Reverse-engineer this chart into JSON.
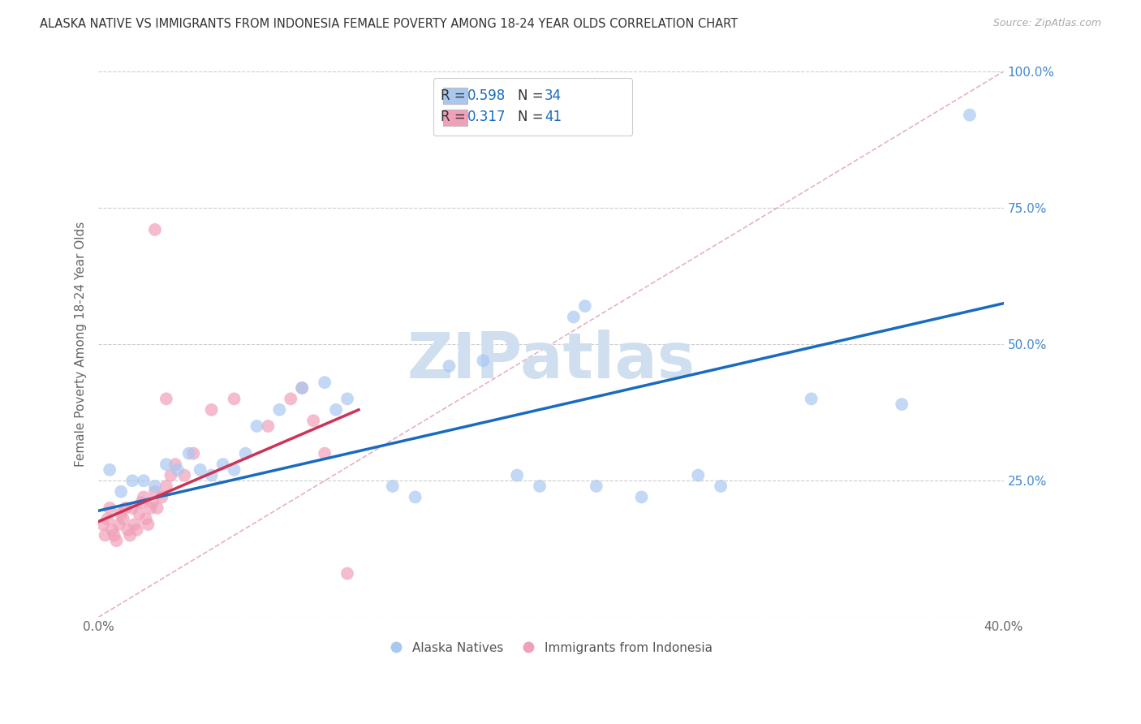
{
  "title": "ALASKA NATIVE VS IMMIGRANTS FROM INDONESIA FEMALE POVERTY AMONG 18-24 YEAR OLDS CORRELATION CHART",
  "source": "Source: ZipAtlas.com",
  "ylabel": "Female Poverty Among 18-24 Year Olds",
  "xlim": [
    0.0,
    0.4
  ],
  "ylim": [
    0.0,
    1.0
  ],
  "xticks": [
    0.0,
    0.05,
    0.1,
    0.15,
    0.2,
    0.25,
    0.3,
    0.35,
    0.4
  ],
  "yticks_right": [
    0.0,
    0.25,
    0.5,
    0.75,
    1.0
  ],
  "yticklabels_right": [
    "",
    "25.0%",
    "50.0%",
    "75.0%",
    "100.0%"
  ],
  "blue_color": "#a8c8f0",
  "pink_color": "#f0a0b8",
  "blue_line_color": "#1a6bbf",
  "pink_line_color": "#cc3355",
  "right_tick_color": "#4488cc",
  "watermark_color": "#d0dff0",
  "diag_line_color": "#e8b0c0",
  "blue_scatter_x": [
    0.005,
    0.01,
    0.015,
    0.02,
    0.025,
    0.03,
    0.035,
    0.04,
    0.045,
    0.05,
    0.055,
    0.06,
    0.065,
    0.07,
    0.08,
    0.09,
    0.1,
    0.105,
    0.11,
    0.13,
    0.14,
    0.155,
    0.17,
    0.185,
    0.195,
    0.21,
    0.215,
    0.22,
    0.24,
    0.265,
    0.275,
    0.315,
    0.355,
    0.385
  ],
  "blue_scatter_y": [
    0.27,
    0.23,
    0.25,
    0.25,
    0.24,
    0.28,
    0.27,
    0.3,
    0.27,
    0.26,
    0.28,
    0.27,
    0.3,
    0.35,
    0.38,
    0.42,
    0.43,
    0.38,
    0.4,
    0.24,
    0.22,
    0.46,
    0.47,
    0.26,
    0.24,
    0.55,
    0.57,
    0.24,
    0.22,
    0.26,
    0.24,
    0.4,
    0.39,
    0.92
  ],
  "pink_scatter_x": [
    0.002,
    0.003,
    0.004,
    0.005,
    0.006,
    0.007,
    0.008,
    0.009,
    0.01,
    0.011,
    0.012,
    0.013,
    0.014,
    0.015,
    0.016,
    0.017,
    0.018,
    0.019,
    0.02,
    0.021,
    0.022,
    0.023,
    0.024,
    0.025,
    0.026,
    0.028,
    0.03,
    0.032,
    0.034,
    0.038,
    0.042,
    0.05,
    0.06,
    0.075,
    0.085,
    0.09,
    0.095,
    0.1,
    0.11,
    0.025,
    0.03
  ],
  "pink_scatter_y": [
    0.17,
    0.15,
    0.18,
    0.2,
    0.16,
    0.15,
    0.14,
    0.17,
    0.19,
    0.18,
    0.2,
    0.16,
    0.15,
    0.2,
    0.17,
    0.16,
    0.19,
    0.21,
    0.22,
    0.18,
    0.17,
    0.2,
    0.21,
    0.23,
    0.2,
    0.22,
    0.24,
    0.26,
    0.28,
    0.26,
    0.3,
    0.38,
    0.4,
    0.35,
    0.4,
    0.42,
    0.36,
    0.3,
    0.08,
    0.71,
    0.4
  ],
  "blue_line_x": [
    0.0,
    0.4
  ],
  "blue_line_y": [
    0.195,
    0.575
  ],
  "pink_line_x": [
    0.0,
    0.115
  ],
  "pink_line_y": [
    0.175,
    0.38
  ],
  "diag_line_x": [
    0.0,
    0.4
  ],
  "diag_line_y": [
    0.0,
    1.0
  ]
}
